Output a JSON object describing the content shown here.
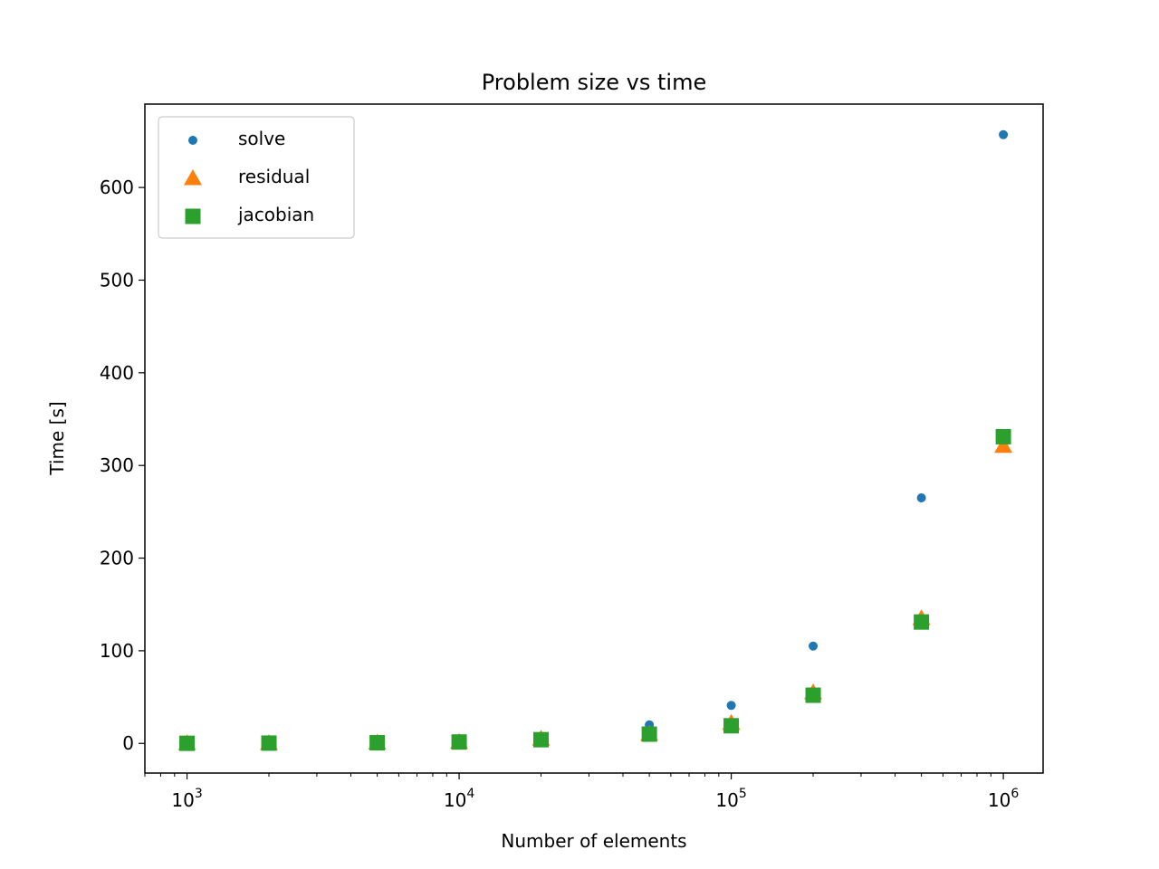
{
  "chart_data": {
    "type": "scatter",
    "title": "Problem size vs time",
    "xlabel": "Number of elements",
    "ylabel": "Time [s]",
    "xscale": "log",
    "xlim": [
      700,
      1400000
    ],
    "ylim": [
      -32,
      690
    ],
    "grid": false,
    "legend_position": "top-left",
    "x_ticks": [
      {
        "value": 1000,
        "base": "10",
        "exp": "3"
      },
      {
        "value": 10000,
        "base": "10",
        "exp": "4"
      },
      {
        "value": 100000,
        "base": "10",
        "exp": "5"
      },
      {
        "value": 1000000,
        "base": "10",
        "exp": "6"
      }
    ],
    "y_ticks": [
      0,
      100,
      200,
      300,
      400,
      500,
      600
    ],
    "x": [
      1000,
      2000,
      5000,
      10000,
      20000,
      50000,
      100000,
      200000,
      500000,
      1000000
    ],
    "series": [
      {
        "name": "solve",
        "marker": "circle",
        "color": "#1f77b4",
        "values": [
          0.2,
          0.5,
          1.3,
          2.8,
          7,
          20,
          41,
          105,
          265,
          657
        ]
      },
      {
        "name": "residual",
        "marker": "triangle",
        "color": "#ff7f0e",
        "values": [
          0.1,
          0.3,
          0.7,
          1.5,
          5,
          10,
          22,
          55,
          135,
          321
        ]
      },
      {
        "name": "jacobian",
        "marker": "square",
        "color": "#2ca02c",
        "values": [
          0.1,
          0.3,
          0.7,
          1.5,
          4,
          10,
          19,
          52,
          131,
          331
        ]
      }
    ]
  }
}
